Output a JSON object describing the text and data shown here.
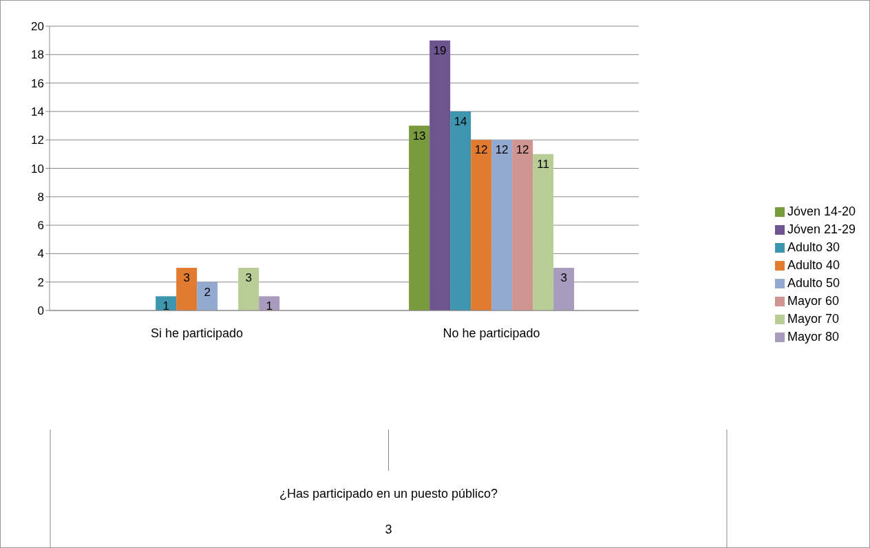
{
  "chart_data": {
    "type": "bar",
    "categories": [
      "Si he participado",
      "No he participado"
    ],
    "annotations": [
      "¿Has participado en un puesto público?",
      "3"
    ],
    "ylim": [
      0,
      20
    ],
    "yticks": [
      0,
      2,
      4,
      6,
      8,
      10,
      12,
      14,
      16,
      18,
      20
    ],
    "grid": "y",
    "legend": "right",
    "series": [
      {
        "name": "Jóven 14-20",
        "color": "#7a9a3e",
        "values": [
          0,
          13
        ],
        "value_labels": [
          null,
          "13"
        ]
      },
      {
        "name": "Jóven 21-29",
        "color": "#6f558f",
        "values": [
          0,
          19
        ],
        "value_labels": [
          null,
          "19"
        ]
      },
      {
        "name": "Adulto 30",
        "color": "#3d96ad",
        "values": [
          1,
          14
        ],
        "value_labels": [
          "1",
          "14"
        ]
      },
      {
        "name": "Adulto 40",
        "color": "#e07b30",
        "values": [
          3,
          12
        ],
        "value_labels": [
          "3",
          "12"
        ]
      },
      {
        "name": "Adulto 50",
        "color": "#93a9cf",
        "values": [
          2,
          12
        ],
        "value_labels": [
          "2",
          "12"
        ]
      },
      {
        "name": "Mayor 60",
        "color": "#d09491",
        "values": [
          0,
          12
        ],
        "value_labels": [
          null,
          "12"
        ]
      },
      {
        "name": "Mayor 70",
        "color": "#b9cd96",
        "values": [
          3,
          11
        ],
        "value_labels": [
          "3",
          "11"
        ]
      },
      {
        "name": "Mayor 80",
        "color": "#a99bbd",
        "values": [
          1,
          3
        ],
        "value_labels": [
          "1",
          "3"
        ]
      }
    ]
  }
}
